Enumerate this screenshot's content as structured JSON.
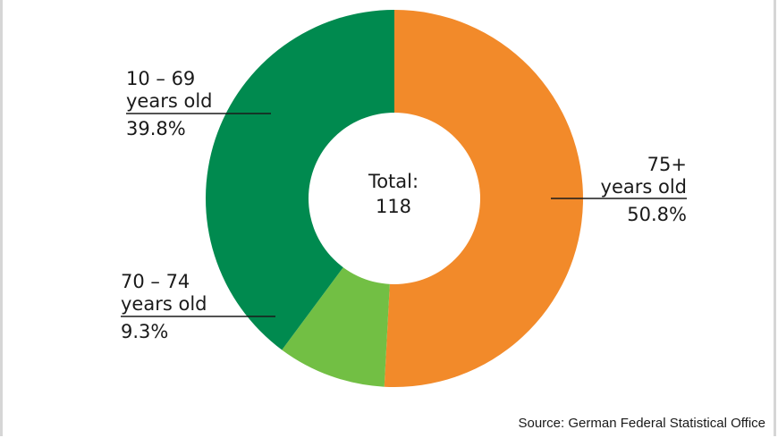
{
  "chart_data": {
    "type": "pie",
    "donut": true,
    "center_label_line1": "Total:",
    "center_label_line2": "118",
    "slices": [
      {
        "label_line1": "75+",
        "label_line2": "years old",
        "value_label": "50.8%",
        "value": 50.8,
        "color": "#f28a2a"
      },
      {
        "label_line1": "70 – 74",
        "label_line2": "years old",
        "value_label": "9.3%",
        "value": 9.3,
        "color": "#72bf44"
      },
      {
        "label_line1": "10 – 69",
        "label_line2": "years old",
        "value_label": "39.8%",
        "value": 39.8,
        "color": "#008a4f"
      }
    ],
    "source": "Source: German Federal Statistical Office"
  }
}
